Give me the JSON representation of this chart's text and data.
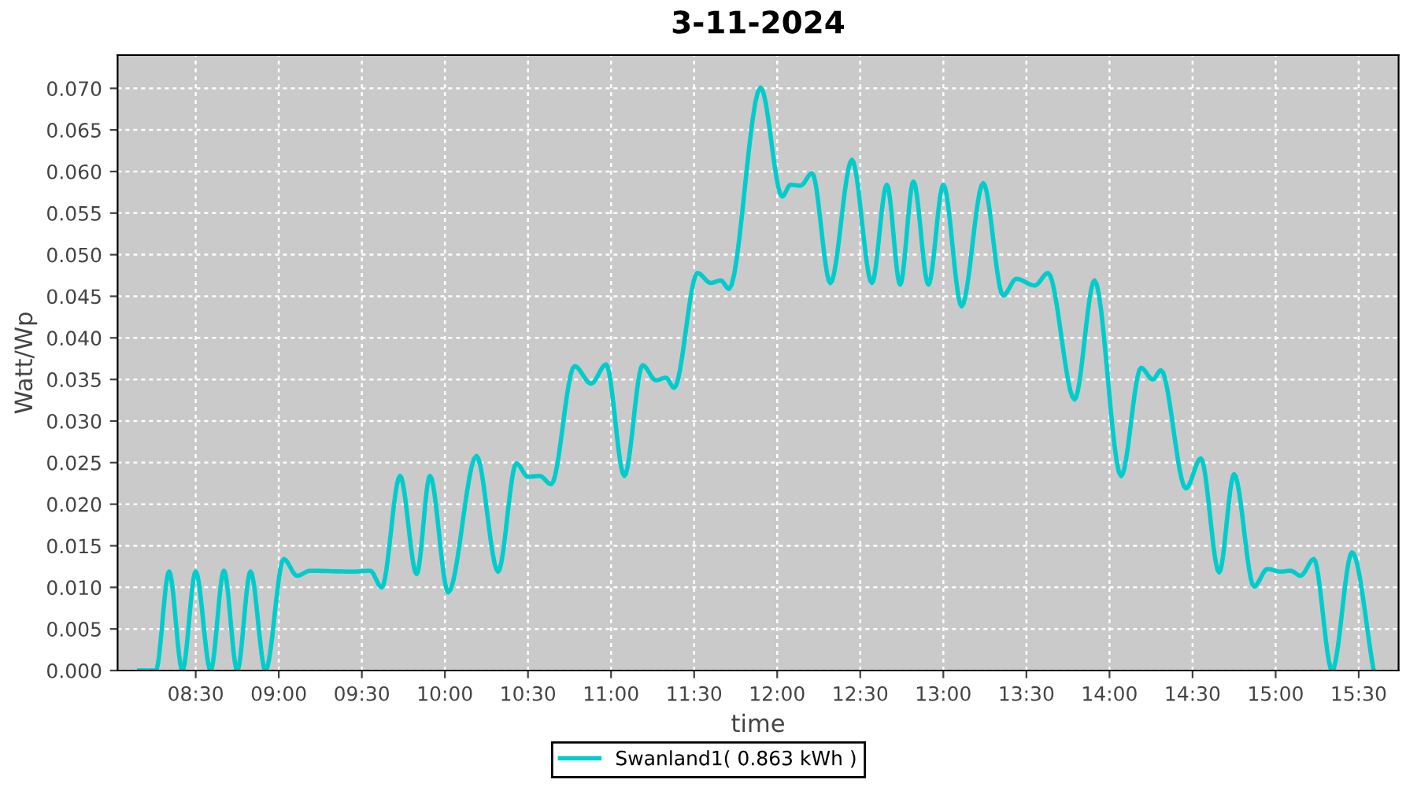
{
  "chart_data": {
    "type": "line",
    "title": "3-11-2024",
    "xlabel": "time",
    "ylabel": "Watt/Wp",
    "xlim": [
      8.03,
      15.74
    ],
    "ylim": [
      0,
      0.074
    ],
    "xticks": [
      {
        "value": 8.5,
        "label": "08:30"
      },
      {
        "value": 9,
        "label": "09:00"
      },
      {
        "value": 9.5,
        "label": "09:30"
      },
      {
        "value": 10,
        "label": "10:00"
      },
      {
        "value": 10.5,
        "label": "10:30"
      },
      {
        "value": 11,
        "label": "11:00"
      },
      {
        "value": 11.5,
        "label": "11:30"
      },
      {
        "value": 12,
        "label": "12:00"
      },
      {
        "value": 12.5,
        "label": "12:30"
      },
      {
        "value": 13,
        "label": "13:00"
      },
      {
        "value": 13.5,
        "label": "13:30"
      },
      {
        "value": 14,
        "label": "14:00"
      },
      {
        "value": 14.5,
        "label": "14:30"
      },
      {
        "value": 15,
        "label": "15:00"
      },
      {
        "value": 15.5,
        "label": "15:30"
      }
    ],
    "yticks": [
      {
        "value": 0,
        "label": "0.000"
      },
      {
        "value": 0.005,
        "label": "0.005"
      },
      {
        "value": 0.01,
        "label": "0.010"
      },
      {
        "value": 0.015,
        "label": "0.015"
      },
      {
        "value": 0.02,
        "label": "0.020"
      },
      {
        "value": 0.025,
        "label": "0.025"
      },
      {
        "value": 0.03,
        "label": "0.030"
      },
      {
        "value": 0.035,
        "label": "0.035"
      },
      {
        "value": 0.04,
        "label": "0.040"
      },
      {
        "value": 0.045,
        "label": "0.045"
      },
      {
        "value": 0.05,
        "label": "0.050"
      },
      {
        "value": 0.055,
        "label": "0.055"
      },
      {
        "value": 0.06,
        "label": "0.060"
      },
      {
        "value": 0.065,
        "label": "0.065"
      },
      {
        "value": 0.07,
        "label": "0.070"
      }
    ],
    "grid": true,
    "legend": "bottom",
    "marker": "none",
    "line_style": "solid",
    "series": [
      {
        "name": "Swanland1( 0.863 kWh )",
        "color": "#00cccc",
        "x": [
          8.16,
          8.26,
          8.34,
          8.42,
          8.5,
          8.59,
          8.67,
          8.75,
          8.83,
          8.92,
          9.03,
          9.11,
          9.19,
          9.45,
          9.55,
          9.62,
          9.73,
          9.83,
          9.91,
          10.02,
          10.19,
          10.32,
          10.43,
          10.5,
          10.57,
          10.64,
          10.78,
          10.88,
          10.97,
          11.08,
          11.19,
          11.27,
          11.33,
          11.38,
          11.52,
          11.6,
          11.66,
          11.71,
          11.9,
          12.03,
          12.08,
          12.14,
          12.21,
          12.32,
          12.45,
          12.57,
          12.66,
          12.74,
          12.82,
          12.91,
          13.0,
          13.11,
          13.24,
          13.36,
          13.44,
          13.55,
          13.63,
          13.79,
          13.91,
          14.07,
          14.19,
          14.26,
          14.31,
          14.46,
          14.55,
          14.66,
          14.75,
          14.87,
          14.95,
          15.03,
          15.09,
          15.15,
          15.23,
          15.34,
          15.46,
          15.59
        ],
        "values": [
          0,
          0,
          0.0119,
          0,
          0.0119,
          0,
          0.012,
          0,
          0.0119,
          0,
          0.0134,
          0.0114,
          0.012,
          0.0119,
          0.012,
          0.01,
          0.0234,
          0.0116,
          0.0234,
          0.0094,
          0.0258,
          0.0119,
          0.0249,
          0.0233,
          0.0234,
          0.0224,
          0.0366,
          0.0345,
          0.0368,
          0.0234,
          0.0367,
          0.0349,
          0.0352,
          0.034,
          0.0478,
          0.0466,
          0.0469,
          0.0459,
          0.0701,
          0.057,
          0.0584,
          0.0583,
          0.0598,
          0.0466,
          0.0614,
          0.0466,
          0.0584,
          0.0464,
          0.0588,
          0.0464,
          0.0584,
          0.0438,
          0.0586,
          0.0451,
          0.0471,
          0.0463,
          0.0478,
          0.0326,
          0.0469,
          0.0234,
          0.0364,
          0.035,
          0.0361,
          0.0219,
          0.0255,
          0.0118,
          0.0236,
          0.0101,
          0.0122,
          0.0119,
          0.012,
          0.0114,
          0.0134,
          0,
          0.0142,
          0
        ]
      }
    ]
  }
}
